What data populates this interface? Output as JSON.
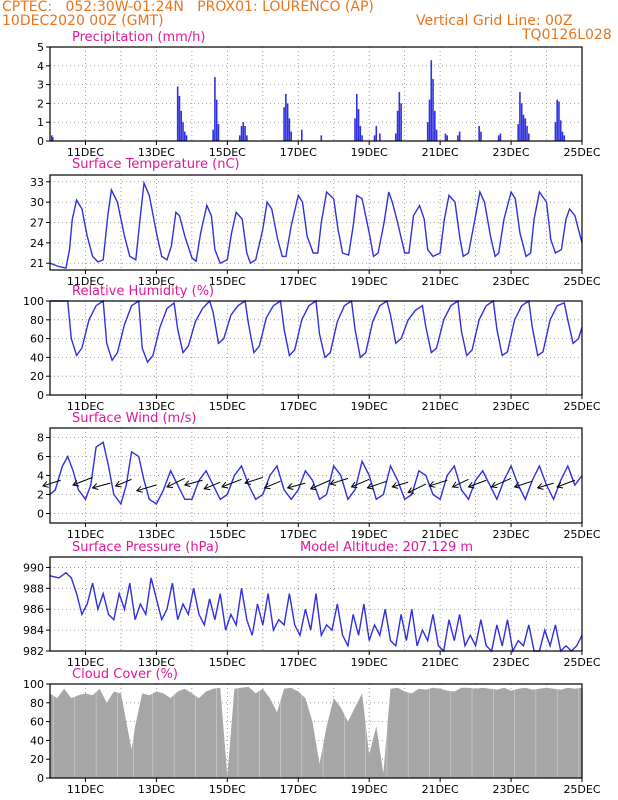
{
  "header": {
    "line1": "CPTEC:   052:30W-01:24N   PROX01: LOURENCO (AP)",
    "line2": "10DEC2020 00Z (GMT)",
    "right1": "Vertical Grid Line: 00Z",
    "right2": "TQ0126L028"
  },
  "colors": {
    "series": "#3030e0",
    "cloud": "#a6a6a6",
    "title": "#e0179a",
    "header": "#e8741c"
  },
  "chart_data": [
    {
      "type": "bar",
      "key": "precip",
      "title": "Precipitation (mm/h)",
      "xlabels": [
        "11DEC",
        "13DEC",
        "15DEC",
        "17DEC",
        "19DEC",
        "21DEC",
        "23DEC",
        "25DEC"
      ],
      "x_range_days": [
        0,
        15
      ],
      "ylim": [
        0,
        5
      ],
      "yticks": [
        0,
        1,
        2,
        3,
        4,
        5
      ],
      "x": [
        0.05,
        0.08,
        3.6,
        3.65,
        3.7,
        3.75,
        3.8,
        3.85,
        4.6,
        4.65,
        4.7,
        4.75,
        5.35,
        5.4,
        5.45,
        5.5,
        5.55,
        6.6,
        6.65,
        6.7,
        6.75,
        6.8,
        7.1,
        7.65,
        8.6,
        8.65,
        8.7,
        8.75,
        8.8,
        9.15,
        9.2,
        9.3,
        9.75,
        9.8,
        9.85,
        9.9,
        10.65,
        10.7,
        10.75,
        10.8,
        10.85,
        10.9,
        11.15,
        11.2,
        11.5,
        11.55,
        12.1,
        12.15,
        12.65,
        12.7,
        13.2,
        13.25,
        13.3,
        13.35,
        13.4,
        13.45,
        13.5,
        14.25,
        14.3,
        14.35,
        14.4,
        14.45,
        14.5
      ],
      "values": [
        0.3,
        0.2,
        2.9,
        2.4,
        1.6,
        1.0,
        0.5,
        0.3,
        0.6,
        3.4,
        2.2,
        0.9,
        0.3,
        0.8,
        1.0,
        0.8,
        0.3,
        1.8,
        2.5,
        2.0,
        1.2,
        0.5,
        0.6,
        0.3,
        1.2,
        2.5,
        1.7,
        0.8,
        0.3,
        0.3,
        0.8,
        0.4,
        0.4,
        1.6,
        2.6,
        2.0,
        1.0,
        2.2,
        4.3,
        3.3,
        1.6,
        0.6,
        0.4,
        0.3,
        0.3,
        0.5,
        0.8,
        0.5,
        0.3,
        0.4,
        0.9,
        2.6,
        2.0,
        1.4,
        1.2,
        0.8,
        0.4,
        1.0,
        2.2,
        2.1,
        1.1,
        0.5,
        0.3
      ]
    },
    {
      "type": "line",
      "key": "temp",
      "title": "Surface Temperature (nC)",
      "xlabels": [
        "11DEC",
        "13DEC",
        "15DEC",
        "17DEC",
        "19DEC",
        "21DEC",
        "23DEC",
        "25DEC"
      ],
      "x_range_days": [
        0,
        15
      ],
      "ylim": [
        20,
        34
      ],
      "yticks": [
        21,
        24,
        27,
        30,
        33
      ],
      "x": [
        0,
        0.25,
        0.45,
        0.55,
        0.63,
        0.75,
        0.9,
        1.05,
        1.2,
        1.35,
        1.5,
        1.63,
        1.73,
        1.9,
        2.1,
        2.25,
        2.42,
        2.55,
        2.65,
        2.8,
        3.0,
        3.15,
        3.3,
        3.42,
        3.55,
        3.65,
        3.8,
        4.0,
        4.12,
        4.25,
        4.42,
        4.55,
        4.65,
        4.8,
        5.0,
        5.12,
        5.25,
        5.42,
        5.55,
        5.65,
        5.8,
        6.0,
        6.12,
        6.25,
        6.42,
        6.55,
        6.65,
        6.8,
        7.0,
        7.12,
        7.25,
        7.42,
        7.55,
        7.65,
        7.8,
        8.0,
        8.12,
        8.25,
        8.42,
        8.55,
        8.65,
        8.8,
        9.0,
        9.12,
        9.25,
        9.42,
        9.55,
        9.65,
        9.8,
        10.0,
        10.12,
        10.25,
        10.42,
        10.55,
        10.65,
        10.8,
        11.0,
        11.12,
        11.25,
        11.42,
        11.55,
        11.65,
        11.8,
        12.0,
        12.12,
        12.25,
        12.42,
        12.55,
        12.65,
        12.8,
        13.0,
        13.12,
        13.25,
        13.42,
        13.55,
        13.65,
        13.8,
        14.0,
        14.12,
        14.25,
        14.42,
        14.55,
        14.65,
        14.8,
        15.0
      ],
      "values": [
        21.0,
        20.5,
        20.3,
        23.0,
        27.5,
        30.3,
        29.0,
        25.0,
        22.0,
        21.2,
        21.5,
        28.0,
        31.8,
        30.0,
        25.0,
        22.0,
        21.5,
        28.0,
        32.8,
        31.0,
        25.5,
        22.0,
        21.5,
        23.5,
        28.5,
        28.0,
        25.0,
        21.8,
        21.3,
        25.5,
        29.5,
        28.0,
        23.0,
        21.0,
        21.5,
        25.5,
        28.5,
        27.5,
        22.5,
        21.0,
        21.5,
        26.0,
        30.0,
        29.0,
        24.5,
        22.0,
        22.0,
        26.5,
        31.0,
        30.0,
        25.0,
        22.5,
        22.5,
        27.0,
        31.5,
        30.5,
        26.0,
        22.5,
        22.2,
        26.5,
        31.0,
        30.5,
        25.5,
        22.0,
        22.5,
        27.0,
        31.5,
        30.0,
        27.0,
        22.5,
        22.5,
        28.0,
        29.5,
        27.5,
        23.0,
        22.0,
        22.5,
        27.5,
        31.0,
        30.0,
        25.0,
        22.0,
        22.5,
        28.0,
        31.5,
        30.0,
        25.0,
        22.0,
        22.5,
        27.5,
        31.5,
        30.5,
        25.5,
        22.0,
        22.5,
        27.5,
        31.5,
        30.0,
        24.5,
        22.5,
        23.0,
        27.5,
        29.0,
        28.0,
        24.0
      ]
    },
    {
      "type": "line",
      "key": "rh",
      "title": "Relative Humidity (%)",
      "xlabels": [
        "11DEC",
        "13DEC",
        "15DEC",
        "17DEC",
        "19DEC",
        "21DEC",
        "23DEC",
        "25DEC"
      ],
      "x_range_days": [
        0,
        15
      ],
      "ylim": [
        0,
        100
      ],
      "yticks": [
        0,
        20,
        40,
        60,
        80,
        100
      ],
      "x": [
        0,
        0.3,
        0.5,
        0.6,
        0.75,
        0.9,
        1.1,
        1.3,
        1.5,
        1.6,
        1.75,
        1.9,
        2.1,
        2.3,
        2.5,
        2.6,
        2.75,
        2.9,
        3.1,
        3.3,
        3.5,
        3.6,
        3.75,
        3.9,
        4.1,
        4.3,
        4.5,
        4.6,
        4.75,
        4.9,
        5.1,
        5.3,
        5.5,
        5.6,
        5.75,
        5.9,
        6.1,
        6.3,
        6.5,
        6.6,
        6.75,
        6.9,
        7.1,
        7.3,
        7.5,
        7.6,
        7.75,
        7.9,
        8.1,
        8.3,
        8.5,
        8.6,
        8.75,
        8.9,
        9.1,
        9.3,
        9.5,
        9.6,
        9.75,
        9.9,
        10.1,
        10.3,
        10.5,
        10.6,
        10.75,
        10.9,
        11.1,
        11.3,
        11.5,
        11.6,
        11.75,
        11.9,
        12.1,
        12.3,
        12.5,
        12.6,
        12.75,
        12.9,
        13.1,
        13.3,
        13.5,
        13.6,
        13.75,
        13.9,
        14.1,
        14.3,
        14.5,
        14.6,
        14.75,
        14.9,
        15.0
      ],
      "values": [
        100,
        100,
        100,
        60,
        42,
        50,
        80,
        95,
        100,
        55,
        37,
        45,
        75,
        95,
        100,
        50,
        35,
        42,
        72,
        92,
        98,
        70,
        45,
        52,
        78,
        92,
        100,
        88,
        55,
        60,
        85,
        95,
        100,
        75,
        45,
        52,
        82,
        95,
        100,
        70,
        42,
        48,
        80,
        95,
        100,
        65,
        40,
        45,
        78,
        95,
        100,
        70,
        40,
        45,
        78,
        95,
        100,
        85,
        55,
        60,
        80,
        90,
        95,
        72,
        45,
        50,
        80,
        95,
        100,
        68,
        42,
        48,
        80,
        95,
        100,
        70,
        42,
        46,
        80,
        95,
        100,
        72,
        42,
        46,
        80,
        95,
        98,
        80,
        55,
        60,
        72
      ]
    },
    {
      "type": "line",
      "key": "wind",
      "title": "Surface Wind (m/s)",
      "xlabels": [
        "11DEC",
        "13DEC",
        "15DEC",
        "17DEC",
        "19DEC",
        "21DEC",
        "23DEC",
        "25DEC"
      ],
      "x_range_days": [
        0,
        15
      ],
      "ylim": [
        -1,
        9
      ],
      "yticks": [
        0,
        2,
        4,
        6,
        8
      ],
      "x": [
        0,
        0.15,
        0.35,
        0.5,
        0.65,
        0.8,
        1.0,
        1.15,
        1.3,
        1.5,
        1.65,
        1.8,
        2.0,
        2.15,
        2.3,
        2.5,
        2.65,
        2.8,
        3.0,
        3.2,
        3.4,
        3.6,
        3.8,
        4.0,
        4.2,
        4.4,
        4.6,
        4.8,
        5.0,
        5.2,
        5.4,
        5.6,
        5.8,
        6.0,
        6.2,
        6.4,
        6.6,
        6.8,
        7.0,
        7.2,
        7.4,
        7.6,
        7.8,
        8.0,
        8.2,
        8.4,
        8.6,
        8.8,
        9.0,
        9.2,
        9.4,
        9.6,
        9.8,
        10.0,
        10.2,
        10.4,
        10.6,
        10.8,
        11.0,
        11.2,
        11.4,
        11.6,
        11.8,
        12.0,
        12.2,
        12.4,
        12.6,
        12.8,
        13.0,
        13.2,
        13.4,
        13.6,
        13.8,
        14.0,
        14.2,
        14.4,
        14.6,
        14.8,
        15.0
      ],
      "values": [
        2.0,
        2.5,
        5.0,
        6.0,
        4.5,
        2.5,
        1.5,
        3.0,
        7.0,
        7.5,
        5.0,
        2.0,
        1.0,
        3.0,
        6.5,
        6.0,
        3.5,
        1.5,
        1.0,
        2.5,
        4.5,
        3.0,
        1.5,
        1.5,
        3.5,
        4.5,
        3.0,
        1.5,
        2.0,
        4.0,
        5.0,
        3.0,
        1.5,
        2.0,
        4.0,
        5.0,
        2.5,
        1.5,
        2.5,
        4.5,
        3.5,
        1.5,
        2.0,
        5.0,
        4.0,
        1.5,
        2.5,
        5.5,
        4.0,
        1.5,
        2.0,
        5.0,
        3.5,
        1.5,
        2.0,
        4.5,
        4.0,
        2.0,
        1.5,
        4.0,
        5.0,
        2.5,
        1.5,
        3.5,
        4.5,
        3.0,
        1.5,
        3.5,
        5.0,
        3.0,
        1.5,
        3.5,
        5.0,
        3.0,
        1.5,
        3.5,
        5.0,
        3.0,
        4.0
      ],
      "vectors_x": [
        0.3,
        1.2,
        1.7,
        2.3,
        3.0,
        3.8,
        4.3,
        4.8,
        5.4,
        6.0,
        6.5,
        7.2,
        7.9,
        8.4,
        9.0,
        9.5,
        10.1,
        10.6,
        11.2,
        11.8,
        12.3,
        13.0,
        13.6,
        14.2,
        14.8
      ],
      "vectors_y": [
        3.5,
        3.8,
        3.2,
        3.6,
        3.0,
        3.7,
        3.5,
        3.3,
        3.6,
        3.8,
        3.4,
        3.2,
        3.5,
        3.7,
        3.6,
        3.4,
        3.3,
        3.1,
        3.5,
        3.6,
        3.5,
        3.7,
        3.4,
        3.2,
        3.5
      ],
      "vectors_dx": [
        -1.0,
        -1.1,
        -1.0,
        -0.9,
        -1.1,
        -1.0,
        -1.0,
        -0.9,
        -1.1,
        -1.0,
        -0.9,
        -1.0,
        -1.1,
        -1.0,
        -1.0,
        -1.1,
        -0.9,
        -1.0,
        -1.0,
        -0.9,
        -1.0,
        -1.1,
        -1.0,
        -0.9,
        -1.0
      ],
      "vectors_dy": [
        -0.6,
        -0.8,
        -0.5,
        -0.7,
        -0.6,
        -0.9,
        -0.5,
        -0.7,
        -0.8,
        -0.6,
        -0.7,
        -0.5,
        -0.9,
        -0.6,
        -0.8,
        -0.7,
        -0.5,
        -0.9,
        -0.6,
        -0.8,
        -0.7,
        -0.9,
        -0.6,
        -0.5,
        -0.7
      ]
    },
    {
      "type": "line",
      "key": "press",
      "title": "Surface Pressure (hPa)",
      "annotation": "Model Altitude: 207.129  m",
      "xlabels": [
        "11DEC",
        "13DEC",
        "15DEC",
        "17DEC",
        "19DEC",
        "21DEC",
        "23DEC",
        "25DEC"
      ],
      "x_range_days": [
        0,
        15
      ],
      "ylim": [
        982,
        991
      ],
      "yticks": [
        982,
        984,
        986,
        988,
        990
      ],
      "x": [
        0,
        0.25,
        0.45,
        0.6,
        0.75,
        0.9,
        1.05,
        1.2,
        1.35,
        1.5,
        1.65,
        1.8,
        1.95,
        2.1,
        2.25,
        2.4,
        2.55,
        2.7,
        2.85,
        3.0,
        3.15,
        3.3,
        3.45,
        3.6,
        3.75,
        3.9,
        4.05,
        4.2,
        4.35,
        4.5,
        4.65,
        4.8,
        4.95,
        5.1,
        5.25,
        5.4,
        5.55,
        5.7,
        5.85,
        6.0,
        6.15,
        6.3,
        6.45,
        6.6,
        6.75,
        6.9,
        7.05,
        7.2,
        7.35,
        7.5,
        7.65,
        7.8,
        7.95,
        8.1,
        8.25,
        8.4,
        8.55,
        8.7,
        8.85,
        9.0,
        9.15,
        9.3,
        9.45,
        9.6,
        9.75,
        9.9,
        10.05,
        10.2,
        10.35,
        10.5,
        10.65,
        10.8,
        10.95,
        11.1,
        11.25,
        11.4,
        11.55,
        11.7,
        11.85,
        12.0,
        12.15,
        12.3,
        12.45,
        12.6,
        12.75,
        12.9,
        13.05,
        13.2,
        13.35,
        13.5,
        13.65,
        13.8,
        13.95,
        14.1,
        14.25,
        14.4,
        14.55,
        14.7,
        14.85,
        15.0
      ],
      "values": [
        989.2,
        989.0,
        989.5,
        989.0,
        987.5,
        985.5,
        986.5,
        988.5,
        986.0,
        987.5,
        985.5,
        985.0,
        987.5,
        986.0,
        988.5,
        985.0,
        986.5,
        985.5,
        989.0,
        987.0,
        985.0,
        986.0,
        988.5,
        985.0,
        986.5,
        985.5,
        988.0,
        985.5,
        984.5,
        987.0,
        985.0,
        987.5,
        984.0,
        985.5,
        984.5,
        988.0,
        985.0,
        983.5,
        986.5,
        984.5,
        987.5,
        984.0,
        985.0,
        984.5,
        987.5,
        984.5,
        983.5,
        986.0,
        984.0,
        987.5,
        983.5,
        984.5,
        984.0,
        986.5,
        983.5,
        982.5,
        985.5,
        983.5,
        986.5,
        983.0,
        984.5,
        983.5,
        986.0,
        983.0,
        982.5,
        985.5,
        983.0,
        986.0,
        982.5,
        984.0,
        983.0,
        985.5,
        982.5,
        982.0,
        985.0,
        983.0,
        985.5,
        982.5,
        983.5,
        982.5,
        985.0,
        982.5,
        982.0,
        984.5,
        982.5,
        985.0,
        982.0,
        983.0,
        982.5,
        984.5,
        982.0,
        982.0,
        984.0,
        982.5,
        984.5,
        982.0,
        982.5,
        982.0,
        982.5,
        983.5
      ]
    },
    {
      "type": "area",
      "key": "cloud",
      "title": "Cloud Cover (%)",
      "xlabels": [
        "11DEC",
        "13DEC",
        "15DEC",
        "17DEC",
        "19DEC",
        "21DEC",
        "23DEC",
        "25DEC"
      ],
      "x_range_days": [
        0,
        15
      ],
      "ylim": [
        0,
        100
      ],
      "yticks": [
        0,
        20,
        40,
        60,
        80,
        100
      ],
      "x": [
        0,
        0.2,
        0.4,
        0.6,
        0.8,
        1.0,
        1.2,
        1.4,
        1.6,
        1.8,
        2.0,
        2.2,
        2.3,
        2.4,
        2.6,
        2.8,
        3.0,
        3.2,
        3.4,
        3.6,
        3.8,
        4.0,
        4.2,
        4.4,
        4.6,
        4.8,
        5.0,
        5.2,
        5.4,
        5.6,
        5.8,
        6.0,
        6.2,
        6.4,
        6.6,
        6.8,
        7.0,
        7.2,
        7.4,
        7.6,
        7.8,
        8.0,
        8.2,
        8.4,
        8.6,
        8.8,
        9.0,
        9.2,
        9.4,
        9.6,
        9.8,
        10.0,
        10.2,
        10.4,
        10.6,
        10.8,
        11.0,
        11.2,
        11.4,
        11.6,
        11.8,
        12.0,
        12.2,
        12.4,
        12.6,
        12.8,
        13.0,
        13.2,
        13.4,
        13.6,
        13.8,
        14.0,
        14.2,
        14.4,
        14.6,
        14.8,
        15.0
      ],
      "values": [
        90,
        85,
        95,
        85,
        88,
        90,
        88,
        95,
        80,
        92,
        90,
        50,
        30,
        55,
        90,
        88,
        92,
        90,
        85,
        92,
        95,
        90,
        85,
        92,
        95,
        96,
        2,
        95,
        96,
        97,
        90,
        95,
        85,
        70,
        95,
        96,
        92,
        85,
        60,
        15,
        55,
        85,
        75,
        60,
        75,
        90,
        25,
        55,
        5,
        95,
        96,
        92,
        90,
        95,
        94,
        96,
        95,
        93,
        92,
        96,
        96,
        95,
        96,
        95,
        94,
        96,
        93,
        95,
        96,
        94,
        95,
        96,
        95,
        94,
        96,
        95,
        96
      ]
    }
  ]
}
